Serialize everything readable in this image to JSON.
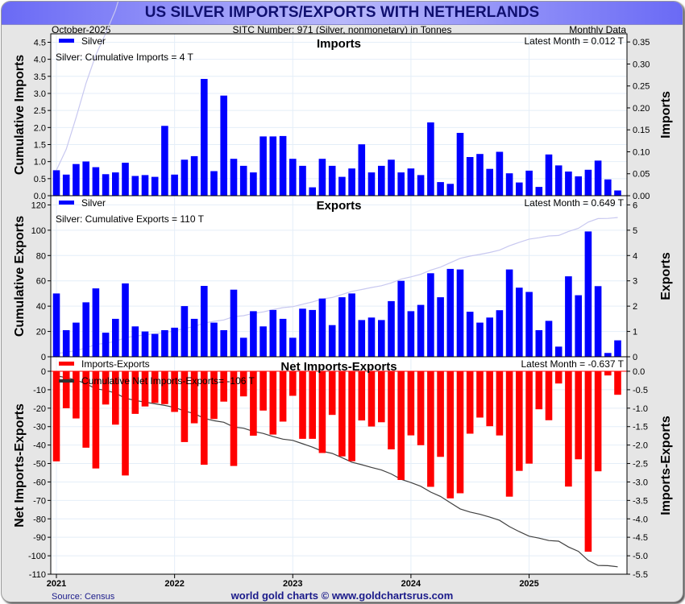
{
  "header": {
    "title": "US SILVER IMPORTS/EXPORTS WITH NETHERLANDS",
    "date": "October-2025",
    "sitc": "SITC Number: 971 (Silver, nonmonetary) in Tonnes",
    "frequency": "Monthly Data"
  },
  "footer": {
    "source": "Source: Census",
    "credit": "world gold charts © www.goldchartsrus.com"
  },
  "colors": {
    "bar_blue": "#0000ff",
    "bar_red": "#ff0000",
    "cum_line_light": "#c8c8f0",
    "cum_line_dark": "#404040",
    "grid": "#e4eef8"
  },
  "chart_data": [
    {
      "type": "bar",
      "title": "Imports",
      "legend": "Silver",
      "legend_position": "top-left",
      "annotation_cumulative": "Silver: Cumulative Imports = 4 T",
      "annotation_latest": "Latest Month = 0.012 T",
      "ylabel_left": "Cumulative Imports",
      "ylabel_right": "Imports",
      "ylim_left": [
        0,
        4.7
      ],
      "ylim_right": [
        0,
        0.365
      ],
      "yticks_left": [
        "0.0",
        "0.5",
        "1.0",
        "1.5",
        "2.0",
        "2.5",
        "3.0",
        "3.5",
        "4.0",
        "4.5"
      ],
      "yticks_right": [
        "0.00",
        "0.05",
        "0.10",
        "0.15",
        "0.20",
        "0.25",
        "0.30",
        "0.35"
      ],
      "start_month": "2021-01",
      "values": [
        0.058,
        0.048,
        0.072,
        0.078,
        0.065,
        0.049,
        0.053,
        0.075,
        0.045,
        0.047,
        0.043,
        0.159,
        0.048,
        0.082,
        0.09,
        0.266,
        0.056,
        0.228,
        0.084,
        0.068,
        0.053,
        0.135,
        0.135,
        0.136,
        0.084,
        0.068,
        0.019,
        0.084,
        0.068,
        0.043,
        0.062,
        0.117,
        0.053,
        0.068,
        0.082,
        0.053,
        0.062,
        0.047,
        0.167,
        0.031,
        0.027,
        0.143,
        0.088,
        0.095,
        0.061,
        0.1,
        0.051,
        0.03,
        0.057,
        0.02,
        0.094,
        0.069,
        0.055,
        0.044,
        0.059,
        0.08,
        0.037,
        0.012
      ]
    },
    {
      "type": "bar",
      "title": "Exports",
      "legend": "Silver",
      "legend_position": "top-left",
      "annotation_cumulative": "Silver: Cumulative Exports = 110 T",
      "annotation_latest": "Latest Month = 0.649 T",
      "ylabel_left": "Cumulative Exports",
      "ylabel_right": "Exports",
      "ylim_left": [
        0,
        126
      ],
      "ylim_right": [
        0,
        6.3
      ],
      "yticks_left": [
        "0",
        "20",
        "40",
        "60",
        "80",
        "100",
        "120"
      ],
      "yticks_right": [
        "0",
        "1",
        "2",
        "3",
        "4",
        "5",
        "6"
      ],
      "start_month": "2021-01",
      "values": [
        2.5,
        1.05,
        1.35,
        2.15,
        2.7,
        0.95,
        1.5,
        2.9,
        1.2,
        1.0,
        0.9,
        1.05,
        1.15,
        2.0,
        1.5,
        2.8,
        1.35,
        1.05,
        2.65,
        0.75,
        1.8,
        1.2,
        1.85,
        1.5,
        0.75,
        1.9,
        1.85,
        2.3,
        1.25,
        2.35,
        2.5,
        1.45,
        1.55,
        1.45,
        2.2,
        3.0,
        1.8,
        2.05,
        3.3,
        2.35,
        3.47,
        3.45,
        1.78,
        1.35,
        1.55,
        1.84,
        3.45,
        2.73,
        2.56,
        1.05,
        1.42,
        0.4,
        3.18,
        2.43,
        4.95,
        2.79,
        0.15,
        0.649
      ]
    },
    {
      "type": "bar",
      "title": "Net Imports-Exports",
      "legend": "Imports-Exports",
      "legend_line": "Cumulative Net Imports-Exports= -106 T",
      "legend_position": "top-left",
      "annotation_latest": "Latest Month = -0.637 T",
      "ylabel_left": "Net Imports-Exports",
      "ylabel_right": "Imports-Exports",
      "ylim_left": [
        -110,
        0
      ],
      "ylim_right": [
        -5.5,
        0
      ],
      "yticks_left": [
        "0",
        "-10",
        "-20",
        "-30",
        "-40",
        "-50",
        "-60",
        "-70",
        "-80",
        "-90",
        "-100",
        "-110"
      ],
      "yticks_right": [
        "0.0",
        "-0.5",
        "-1.0",
        "-1.5",
        "-2.0",
        "-2.5",
        "-3.0",
        "-3.5",
        "-4.0",
        "-4.5",
        "-5.0",
        "-5.5"
      ],
      "derived_from": "Imports minus Exports"
    }
  ],
  "xaxis": {
    "ticks": [
      "2021",
      "2022",
      "2023",
      "2024",
      "2025"
    ]
  }
}
